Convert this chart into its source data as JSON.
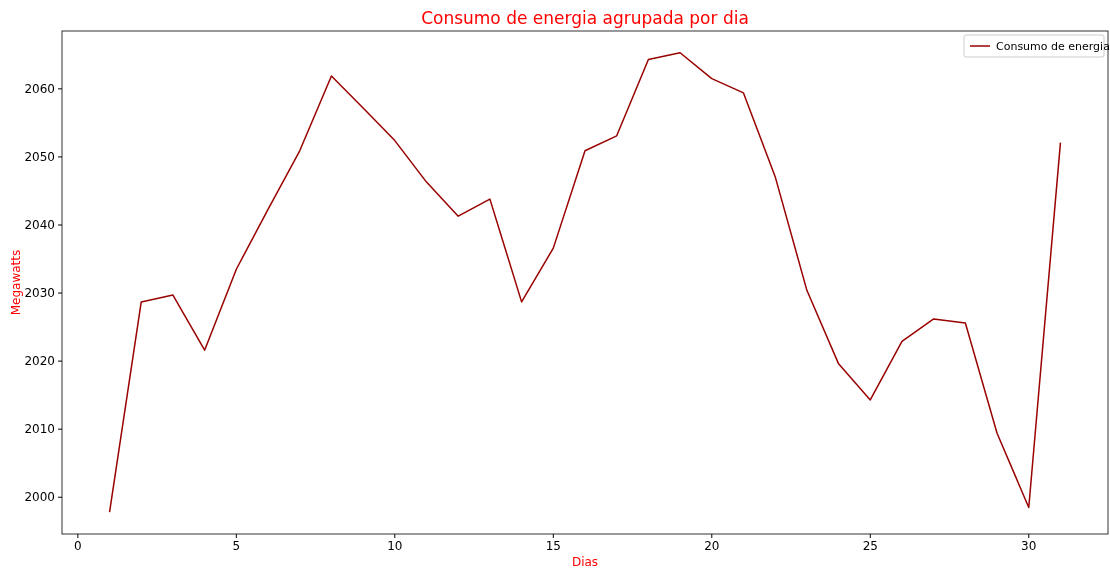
{
  "chart_data": {
    "type": "line",
    "title": "Consumo de energia agrupada por dia",
    "xlabel": "Dias",
    "ylabel": "Megawatts",
    "x": [
      1,
      2,
      3,
      4,
      5,
      6,
      7,
      8,
      9,
      10,
      11,
      12,
      13,
      14,
      15,
      16,
      17,
      18,
      19,
      20,
      21,
      22,
      23,
      24,
      25,
      26,
      27,
      28,
      29,
      30,
      31
    ],
    "series": [
      {
        "name": "Consumo de energia",
        "color": "#990000",
        "values": [
          1997.8,
          2028.7,
          2029.7,
          2021.6,
          2033.5,
          2042.3,
          2050.9,
          2061.9,
          2057.2,
          2052.4,
          2046.3,
          2041.3,
          2043.8,
          2028.7,
          2036.6,
          2050.9,
          2053.1,
          2064.3,
          2065.3,
          2061.5,
          2059.4,
          2047.1,
          2030.4,
          2019.6,
          2014.3,
          2022.9,
          2026.2,
          2025.6,
          2009.4,
          1998.5,
          2052.1
        ]
      }
    ],
    "xlim": [
      -0.5,
      32.5
    ],
    "ylim": [
      1994.6,
      2068.5
    ],
    "xticks": [
      0,
      5,
      10,
      15,
      20,
      25,
      30
    ],
    "yticks": [
      2000,
      2010,
      2020,
      2030,
      2040,
      2050,
      2060
    ],
    "grid": false,
    "legend": "top right",
    "marker": "none",
    "line_style": "solid"
  }
}
